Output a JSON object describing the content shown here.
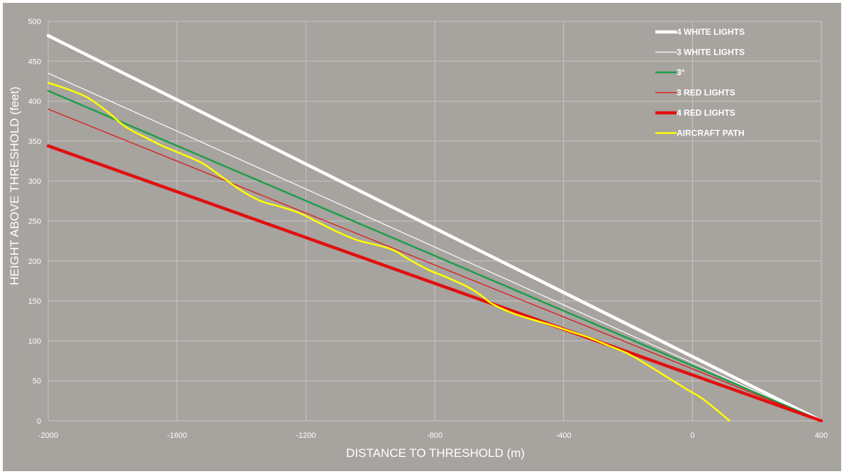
{
  "chart_data": {
    "type": "line",
    "xlabel": "DISTANCE TO THRESHOLD (m)",
    "ylabel": "HEIGHT ABOVE THRESHOLD (feet)",
    "xlim": [
      -2000,
      400
    ],
    "ylim": [
      0,
      500
    ],
    "x_ticks": [
      -2000,
      -1600,
      -1200,
      -800,
      -400,
      0,
      400
    ],
    "y_ticks": [
      0,
      50,
      100,
      150,
      200,
      250,
      300,
      350,
      400,
      450,
      500
    ],
    "grid": true,
    "legend_position": "top-right",
    "series": [
      {
        "name": "4 WHITE LIGHTS",
        "color": "#ffffff",
        "style": "thick",
        "points": [
          [
            -2000,
            482
          ],
          [
            400,
            0
          ]
        ]
      },
      {
        "name": "3 WHITE LIGHTS",
        "color": "#ffffff",
        "style": "thin",
        "points": [
          [
            -2000,
            435
          ],
          [
            400,
            0
          ]
        ]
      },
      {
        "name": "3°",
        "color": "#1e9e4a",
        "style": "medium",
        "points": [
          [
            -2000,
            413
          ],
          [
            400,
            0
          ]
        ]
      },
      {
        "name": "3 RED LIGHTS",
        "color": "#e01010",
        "style": "thin",
        "points": [
          [
            -2000,
            390
          ],
          [
            400,
            0
          ]
        ]
      },
      {
        "name": "4 RED LIGHTS",
        "color": "#e01010",
        "style": "thick",
        "points": [
          [
            -2000,
            344
          ],
          [
            400,
            0
          ]
        ]
      },
      {
        "name": "AIRCRAFT PATH",
        "color": "#ffff00",
        "style": "medium",
        "points": [
          [
            -2000,
            423
          ],
          [
            -1940,
            415
          ],
          [
            -1880,
            405
          ],
          [
            -1820,
            388
          ],
          [
            -1760,
            368
          ],
          [
            -1700,
            355
          ],
          [
            -1640,
            343
          ],
          [
            -1580,
            333
          ],
          [
            -1520,
            322
          ],
          [
            -1460,
            305
          ],
          [
            -1400,
            288
          ],
          [
            -1340,
            275
          ],
          [
            -1280,
            268
          ],
          [
            -1220,
            260
          ],
          [
            -1160,
            248
          ],
          [
            -1100,
            236
          ],
          [
            -1040,
            226
          ],
          [
            -980,
            220
          ],
          [
            -930,
            214
          ],
          [
            -880,
            202
          ],
          [
            -820,
            189
          ],
          [
            -760,
            179
          ],
          [
            -700,
            168
          ],
          [
            -660,
            158
          ],
          [
            -620,
            146
          ],
          [
            -560,
            135
          ],
          [
            -500,
            127
          ],
          [
            -440,
            120
          ],
          [
            -380,
            112
          ],
          [
            -320,
            104
          ],
          [
            -260,
            94
          ],
          [
            -200,
            84
          ],
          [
            -140,
            70
          ],
          [
            -80,
            55
          ],
          [
            -20,
            40
          ],
          [
            30,
            28
          ],
          [
            80,
            12
          ],
          [
            115,
            0
          ]
        ]
      }
    ]
  }
}
